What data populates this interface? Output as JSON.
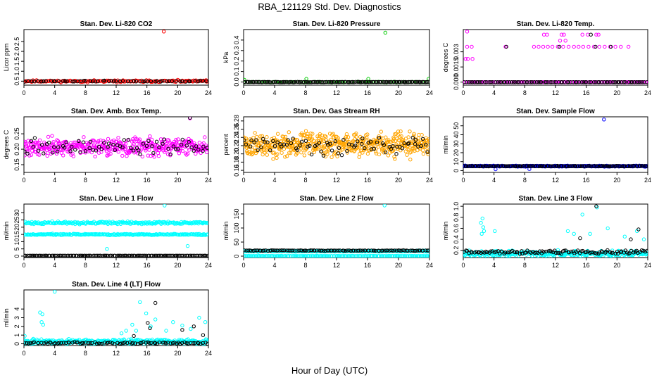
{
  "figure": {
    "title": "RBA_121129  Std. Dev. Diagnostics",
    "xlabel": "Hour of Day (UTC)"
  },
  "chart_data": [
    {
      "type": "scatter",
      "title": "Stan. Dev. Li-820 CO2",
      "ylabel": "Licor ppm",
      "xlim": [
        0,
        24
      ],
      "ylim": [
        0.3,
        3.1
      ],
      "xticks": [
        "0",
        "4",
        "8",
        "12",
        "16",
        "20",
        "24"
      ],
      "yticks": [
        {
          "v": 0.5,
          "label": "0.5"
        },
        {
          "v": 1.0,
          "label": "1.0"
        },
        {
          "v": 1.5,
          "label": "1.5"
        },
        {
          "v": 2.0,
          "label": "2.0"
        },
        {
          "v": 2.5,
          "label": "2.5"
        }
      ],
      "series": [
        {
          "color": "#ff0000",
          "base": 0.5,
          "jitter": 0.07,
          "n": 150,
          "seed": 11,
          "outliers": [
            [
              18.2,
              3.0
            ],
            [
              23.7,
              0.55
            ]
          ]
        },
        {
          "color": "#000000",
          "base": 0.5,
          "jitter": 0.04,
          "n": 60,
          "seed": 12,
          "outliers": []
        }
      ]
    },
    {
      "type": "scatter",
      "title": "Stan. Dev. Li-820 Pressure",
      "ylabel": "kPa",
      "xlim": [
        0,
        24
      ],
      "ylim": [
        -0.03,
        0.5
      ],
      "xticks": [
        "0",
        "4",
        "8",
        "12",
        "16",
        "20",
        "24"
      ],
      "yticks": [
        {
          "v": 0.0,
          "label": "0.0"
        },
        {
          "v": 0.1,
          "label": "0.1"
        },
        {
          "v": 0.2,
          "label": "0.2"
        },
        {
          "v": 0.3,
          "label": "0.3"
        },
        {
          "v": 0.4,
          "label": "0.4"
        }
      ],
      "series": [
        {
          "color": "#00cc00",
          "base": 0.0,
          "jitter": 0.004,
          "n": 60,
          "seed": 21,
          "outliers": [
            [
              18.3,
              0.47
            ],
            [
              0.1,
              0.02
            ],
            [
              8.1,
              0.03
            ],
            [
              16.1,
              0.03
            ],
            [
              23.9,
              0.03
            ]
          ]
        },
        {
          "color": "#000000",
          "base": 0.0,
          "jitter": 0.003,
          "n": 130,
          "seed": 22,
          "outliers": []
        }
      ]
    },
    {
      "type": "scatter",
      "title": "Stan. Dev. Li-820 Temp.",
      "ylabel": "degrees C",
      "xlim": [
        0,
        24
      ],
      "ylim": [
        -0.0003,
        0.0052
      ],
      "xticks": [
        "0",
        "4",
        "8",
        "12",
        "16",
        "20",
        "24"
      ],
      "yticks": [
        {
          "v": 0.0,
          "label": "0.000"
        },
        {
          "v": 0.0015,
          "label": "0.0015"
        },
        {
          "v": 0.003,
          "label": "0.003"
        }
      ],
      "series": [
        {
          "color": "#ff00ff",
          "base": 0.0,
          "jitter": 0.0,
          "n": 120,
          "seed": 31,
          "outliers": [
            [
              0.5,
              0.005
            ],
            [
              0.3,
              0.0023
            ],
            [
              0.6,
              0.0023
            ],
            [
              1.2,
              0.0023
            ],
            [
              0.5,
              0.0035
            ],
            [
              1.1,
              0.0035
            ],
            [
              5.5,
              0.0035
            ],
            [
              9.2,
              0.0035
            ],
            [
              9.8,
              0.0035
            ],
            [
              10.4,
              0.0035
            ],
            [
              11,
              0.0035
            ],
            [
              11.6,
              0.0035
            ],
            [
              12.3,
              0.0035
            ],
            [
              13,
              0.0035
            ],
            [
              13.7,
              0.0035
            ],
            [
              14.4,
              0.0035
            ],
            [
              15,
              0.0035
            ],
            [
              15.6,
              0.0035
            ],
            [
              16.3,
              0.0035
            ],
            [
              17,
              0.0035
            ],
            [
              17.7,
              0.0035
            ],
            [
              18.4,
              0.0035
            ],
            [
              19.1,
              0.0035
            ],
            [
              19.8,
              0.0035
            ],
            [
              20.5,
              0.0035
            ],
            [
              21.5,
              0.0035
            ],
            [
              12.6,
              0.0041
            ],
            [
              13.3,
              0.0041
            ],
            [
              10.5,
              0.0047
            ],
            [
              10.9,
              0.0047
            ],
            [
              12.8,
              0.0047
            ],
            [
              13.1,
              0.0047
            ],
            [
              15.5,
              0.0047
            ],
            [
              16.2,
              0.0047
            ],
            [
              17.3,
              0.0047
            ],
            [
              17.6,
              0.0047
            ]
          ]
        },
        {
          "color": "#000000",
          "base": 0.0,
          "jitter": 0.0,
          "n": 90,
          "seed": 32,
          "outliers": [
            [
              5.6,
              0.0035
            ],
            [
              12.5,
              0.0035
            ],
            [
              17.2,
              0.0035
            ],
            [
              19.2,
              0.0035
            ],
            [
              16.6,
              0.0047
            ]
          ]
        }
      ]
    },
    {
      "type": "scatter",
      "title": "Stan. Dev. Amb. Box Temp.",
      "ylabel": "degrees C",
      "xlim": [
        0,
        24
      ],
      "ylim": [
        0.125,
        0.305
      ],
      "xticks": [
        "0",
        "4",
        "8",
        "12",
        "16",
        "20",
        "24"
      ],
      "yticks": [
        {
          "v": 0.15,
          "label": "0.15"
        },
        {
          "v": 0.2,
          "label": "0.20"
        },
        {
          "v": 0.25,
          "label": "0.25"
        }
      ],
      "series": [
        {
          "color": "#ff00ff",
          "base": 0.207,
          "jitter": 0.04,
          "n": 420,
          "seed": 41,
          "outliers": [
            [
              21.6,
              0.3
            ]
          ]
        },
        {
          "color": "#000000",
          "base": 0.207,
          "jitter": 0.035,
          "n": 70,
          "seed": 42,
          "outliers": [
            [
              21.6,
              0.302
            ]
          ]
        }
      ]
    },
    {
      "type": "scatter",
      "title": "Stan. Dev. Gas Stream RH",
      "ylabel": "percent",
      "xlim": [
        0,
        24
      ],
      "ylim": [
        0.155,
        0.29
      ],
      "xticks": [
        "0",
        "4",
        "8",
        "12",
        "16",
        "20",
        "24"
      ],
      "yticks": [
        {
          "v": 0.16,
          "label": "0.16"
        },
        {
          "v": 0.18,
          "label": "0.18"
        },
        {
          "v": 0.2,
          "label": "0.20"
        },
        {
          "v": 0.22,
          "label": "0.22"
        },
        {
          "v": 0.24,
          "label": "0.24"
        },
        {
          "v": 0.26,
          "label": "0.26"
        },
        {
          "v": 0.28,
          "label": "0.28"
        }
      ],
      "series": [
        {
          "color": "#ffa500",
          "base": 0.222,
          "jitter": 0.04,
          "n": 520,
          "seed": 51,
          "outliers": []
        },
        {
          "color": "#000000",
          "base": 0.222,
          "jitter": 0.032,
          "n": 80,
          "seed": 52,
          "outliers": []
        }
      ]
    },
    {
      "type": "scatter",
      "title": "Stan. Dev. Sample Flow",
      "ylabel": "ml/min",
      "xlim": [
        0,
        24
      ],
      "ylim": [
        -2,
        60
      ],
      "xticks": [
        "0",
        "4",
        "8",
        "12",
        "16",
        "20",
        "24"
      ],
      "yticks": [
        {
          "v": 0,
          "label": "0"
        },
        {
          "v": 10,
          "label": "10"
        },
        {
          "v": 20,
          "label": "20"
        },
        {
          "v": 30,
          "label": "30"
        },
        {
          "v": 40,
          "label": "40"
        },
        {
          "v": 50,
          "label": "50"
        }
      ],
      "series": [
        {
          "color": "#0000ff",
          "base": 5,
          "jitter": 0.8,
          "n": 300,
          "seed": 61,
          "outliers": [
            [
              18.3,
              57
            ],
            [
              4.2,
              1.5
            ],
            [
              8.6,
              1.8
            ]
          ]
        },
        {
          "color": "#000000",
          "base": 5,
          "jitter": 0.5,
          "n": 120,
          "seed": 62,
          "outliers": []
        }
      ]
    },
    {
      "type": "scatter",
      "title": "Stan. Dev. Line 1 Flow",
      "ylabel": "ml/min",
      "xlim": [
        0,
        24
      ],
      "ylim": [
        -1,
        36
      ],
      "xticks": [
        "0",
        "4",
        "8",
        "12",
        "16",
        "20",
        "24"
      ],
      "yticks": [
        {
          "v": 0,
          "label": "0"
        },
        {
          "v": 5,
          "label": "5"
        },
        {
          "v": 10,
          "label": "10"
        },
        {
          "v": 15,
          "label": "15"
        },
        {
          "v": 20,
          "label": "20"
        },
        {
          "v": 25,
          "label": "25"
        },
        {
          "v": 30,
          "label": "30"
        }
      ],
      "series": [
        {
          "color": "#00ffff",
          "base": 23,
          "jitter": 1.3,
          "n": 220,
          "seed": 71,
          "outliers": [
            [
              18.3,
              35
            ],
            [
              10.8,
              5
            ],
            [
              21.3,
              7
            ]
          ]
        },
        {
          "color": "#00ffff",
          "base": 15,
          "jitter": 0.7,
          "n": 220,
          "seed": 72,
          "outliers": []
        },
        {
          "color": "#000000",
          "base": 0.3,
          "jitter": 0.0,
          "n": 130,
          "seed": 73,
          "outliers": []
        }
      ]
    },
    {
      "type": "scatter",
      "title": "Stan. Dev. Line 2 Flow",
      "ylabel": "ml/min",
      "xlim": [
        0,
        24
      ],
      "ylim": [
        -5,
        185
      ],
      "xticks": [
        "0",
        "4",
        "8",
        "12",
        "16",
        "20",
        "24"
      ],
      "yticks": [
        {
          "v": 0,
          "label": "0"
        },
        {
          "v": 50,
          "label": "50"
        },
        {
          "v": 100,
          "label": "100"
        },
        {
          "v": 150,
          "label": "150"
        }
      ],
      "series": [
        {
          "color": "#00ffff",
          "base": 18,
          "jitter": 3,
          "n": 200,
          "seed": 81,
          "outliers": [
            [
              18.2,
              180
            ]
          ]
        },
        {
          "color": "#00ffff",
          "base": 0.5,
          "jitter": 0.3,
          "n": 150,
          "seed": 82,
          "outliers": []
        },
        {
          "color": "#000000",
          "base": 20,
          "jitter": 1.5,
          "n": 110,
          "seed": 83,
          "outliers": []
        }
      ]
    },
    {
      "type": "scatter",
      "title": "Stan. Dev. Line 3 Flow",
      "ylabel": "ml/min",
      "xlim": [
        0,
        24
      ],
      "ylim": [
        0.07,
        1.04
      ],
      "xticks": [
        "0",
        "4",
        "8",
        "12",
        "16",
        "20",
        "24"
      ],
      "yticks": [
        {
          "v": 0.2,
          "label": "0.2"
        },
        {
          "v": 0.4,
          "label": "0.4"
        },
        {
          "v": 0.6,
          "label": "0.6"
        },
        {
          "v": 0.8,
          "label": "0.8"
        },
        {
          "v": 1.0,
          "label": "1.0"
        }
      ],
      "series": [
        {
          "color": "#00ffff",
          "base": 0.14,
          "jitter": 0.08,
          "n": 300,
          "seed": 91,
          "outliers": [
            [
              2.3,
              0.7
            ],
            [
              2.5,
              0.78
            ],
            [
              2.6,
              0.62
            ],
            [
              2.7,
              0.55
            ],
            [
              2.4,
              0.5
            ],
            [
              4.1,
              0.55
            ],
            [
              15.5,
              0.85
            ],
            [
              14.4,
              0.5
            ],
            [
              13.6,
              0.55
            ],
            [
              16.5,
              0.5
            ],
            [
              17.4,
              0.98
            ],
            [
              18.8,
              0.6
            ],
            [
              21.0,
              0.45
            ],
            [
              22.6,
              0.55
            ],
            [
              23.5,
              0.4
            ]
          ]
        },
        {
          "color": "#000000",
          "base": 0.17,
          "jitter": 0.05,
          "n": 110,
          "seed": 92,
          "outliers": [
            [
              17.3,
              1.0
            ],
            [
              15.2,
              0.42
            ],
            [
              22.8,
              0.58
            ],
            [
              21.8,
              0.4
            ]
          ]
        }
      ]
    },
    {
      "type": "scatter",
      "title": "Stan. Dev. Line 4 (LT) Flow",
      "ylabel": "ml/min",
      "xlim": [
        0,
        24
      ],
      "ylim": [
        -0.2,
        6.2
      ],
      "xticks": [
        "0",
        "4",
        "8",
        "12",
        "16",
        "20",
        "24"
      ],
      "yticks": [
        {
          "v": 0,
          "label": "0"
        },
        {
          "v": 1,
          "label": "1"
        },
        {
          "v": 2,
          "label": "2"
        },
        {
          "v": 3,
          "label": "3"
        },
        {
          "v": 4,
          "label": "4"
        }
      ],
      "series": [
        {
          "color": "#00ffff",
          "base": 0.25,
          "jitter": 0.4,
          "n": 340,
          "seed": 101,
          "outliers": [
            [
              2.1,
              3.6
            ],
            [
              2.4,
              3.4
            ],
            [
              2.3,
              2.5
            ],
            [
              2.5,
              2.2
            ],
            [
              4.0,
              6.0
            ],
            [
              0.1,
              0.9
            ],
            [
              12.7,
              1.2
            ],
            [
              13.3,
              1.5
            ],
            [
              14.1,
              2.2
            ],
            [
              14.6,
              1.5
            ],
            [
              15.1,
              4.8
            ],
            [
              15.9,
              3.5
            ],
            [
              17.1,
              2.8
            ],
            [
              18.5,
              1.5
            ],
            [
              19.4,
              2.5
            ],
            [
              20.6,
              2.1
            ],
            [
              21.7,
              1.7
            ],
            [
              22.8,
              3.0
            ],
            [
              23.6,
              2.5
            ],
            [
              16.5,
              2.0
            ]
          ]
        },
        {
          "color": "#000000",
          "base": 0.1,
          "jitter": 0.15,
          "n": 90,
          "seed": 102,
          "outliers": [
            [
              17.1,
              4.7
            ],
            [
              16.1,
              2.4
            ],
            [
              16.4,
              1.8
            ],
            [
              20.6,
              1.6
            ],
            [
              22.1,
              2.0
            ],
            [
              23.3,
              1.0
            ],
            [
              14.3,
              0.9
            ]
          ]
        }
      ]
    }
  ]
}
